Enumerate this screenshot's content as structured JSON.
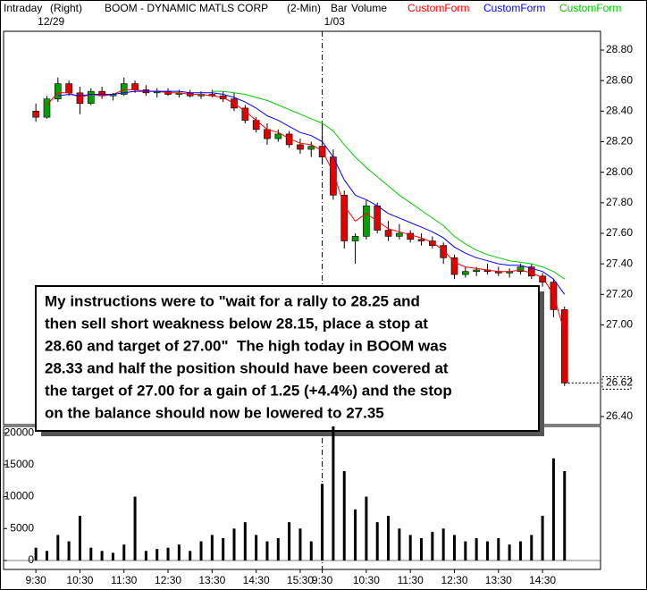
{
  "header": {
    "mode": "Intraday",
    "axis_side": "(Right)",
    "symbol": "BOOM - DYNAMIC MATLS CORP",
    "interval": "(2-Min)",
    "style": "Bar",
    "study": "Volume"
  },
  "chart_data": [
    {
      "type": "candlestick",
      "dates": [
        {
          "value": 0,
          "label": "12/29"
        },
        {
          "value": 390,
          "label": "1/03"
        }
      ],
      "x": [
        0,
        15,
        30,
        45,
        60,
        75,
        90,
        105,
        120,
        135,
        150,
        165,
        180,
        195,
        210,
        225,
        240,
        255,
        270,
        285,
        300,
        315,
        330,
        345,
        360,
        375,
        390,
        405,
        420,
        435,
        450,
        465,
        480,
        495,
        510,
        525,
        540,
        555,
        570,
        585,
        600,
        615,
        630,
        645,
        660,
        675,
        690,
        705,
        720
      ],
      "open": [
        28.4,
        28.36,
        28.48,
        28.58,
        28.52,
        28.45,
        28.53,
        28.5,
        28.51,
        28.58,
        28.54,
        28.52,
        28.53,
        28.51,
        28.52,
        28.5,
        28.51,
        28.5,
        28.48,
        28.42,
        28.34,
        28.28,
        28.22,
        28.25,
        28.18,
        28.15,
        28.17,
        28.1,
        27.85,
        27.55,
        27.58,
        27.78,
        27.62,
        27.58,
        27.6,
        27.56,
        27.55,
        27.52,
        27.44,
        27.33,
        27.35,
        27.36,
        27.35,
        27.34,
        27.35,
        27.38,
        27.32,
        27.28,
        27.1
      ],
      "high": [
        28.45,
        28.5,
        28.62,
        28.6,
        28.56,
        28.55,
        28.56,
        28.52,
        28.62,
        28.6,
        28.57,
        28.55,
        28.55,
        28.54,
        28.54,
        28.53,
        28.54,
        28.53,
        28.52,
        28.44,
        28.36,
        28.32,
        28.28,
        28.27,
        28.22,
        28.2,
        28.33,
        28.15,
        27.88,
        27.6,
        27.82,
        27.8,
        27.68,
        27.66,
        27.62,
        27.6,
        27.58,
        27.54,
        27.46,
        27.38,
        27.38,
        27.4,
        27.38,
        27.37,
        27.4,
        27.4,
        27.34,
        27.3,
        27.12
      ],
      "low": [
        28.33,
        28.35,
        28.46,
        28.5,
        28.38,
        28.44,
        28.48,
        28.47,
        28.5,
        28.52,
        28.5,
        28.49,
        28.5,
        28.49,
        28.49,
        28.48,
        28.49,
        28.46,
        28.4,
        28.32,
        28.26,
        28.18,
        28.2,
        28.16,
        28.12,
        28.1,
        28.05,
        27.82,
        27.5,
        27.4,
        27.56,
        27.6,
        27.55,
        27.56,
        27.54,
        27.52,
        27.5,
        27.4,
        27.3,
        27.31,
        27.32,
        27.33,
        27.32,
        27.31,
        27.33,
        27.3,
        27.25,
        27.05,
        26.6
      ],
      "close": [
        28.36,
        28.48,
        28.58,
        28.52,
        28.45,
        28.53,
        28.5,
        28.51,
        28.58,
        28.54,
        28.52,
        28.53,
        28.51,
        28.52,
        28.5,
        28.51,
        28.5,
        28.48,
        28.42,
        28.34,
        28.28,
        28.22,
        28.25,
        28.18,
        28.15,
        28.17,
        28.1,
        27.85,
        27.55,
        27.58,
        27.78,
        27.62,
        27.58,
        27.6,
        27.56,
        27.55,
        27.52,
        27.44,
        27.33,
        27.35,
        27.36,
        27.35,
        27.34,
        27.35,
        27.38,
        27.32,
        27.28,
        27.1,
        26.62
      ],
      "up_color": "#00a000",
      "down_color": "#e00000",
      "series": [
        {
          "name": "CustomForm",
          "color": "#ff0000",
          "values": [
            null,
            28.44,
            28.52,
            28.52,
            28.49,
            28.51,
            28.5,
            28.51,
            28.54,
            28.54,
            28.53,
            28.53,
            28.52,
            28.52,
            28.51,
            28.51,
            28.5,
            28.49,
            28.45,
            28.4,
            28.34,
            28.28,
            28.26,
            28.22,
            28.19,
            28.18,
            28.14,
            28.0,
            27.78,
            27.68,
            27.73,
            27.68,
            27.63,
            27.61,
            27.59,
            27.57,
            27.54,
            27.49,
            27.41,
            27.38,
            27.37,
            27.36,
            27.35,
            27.35,
            27.36,
            27.34,
            27.31,
            27.2,
            26.95
          ]
        },
        {
          "name": "CustomForm",
          "color": "#0000ff",
          "values": [
            null,
            null,
            28.5,
            28.51,
            28.5,
            28.51,
            28.51,
            28.51,
            28.52,
            28.53,
            28.53,
            28.53,
            28.53,
            28.53,
            28.52,
            28.52,
            28.52,
            28.51,
            28.49,
            28.46,
            28.42,
            28.37,
            28.34,
            28.3,
            28.26,
            28.24,
            28.2,
            28.1,
            27.95,
            27.85,
            27.82,
            27.78,
            27.73,
            27.7,
            27.67,
            27.64,
            27.61,
            27.57,
            27.51,
            27.47,
            27.44,
            27.42,
            27.4,
            27.39,
            27.39,
            27.37,
            27.35,
            27.3,
            27.2
          ]
        },
        {
          "name": "CustomForm",
          "color": "#00cc00",
          "values": [
            null,
            null,
            null,
            null,
            null,
            null,
            null,
            null,
            null,
            null,
            null,
            null,
            null,
            null,
            null,
            null,
            28.53,
            28.53,
            28.52,
            28.51,
            28.49,
            28.47,
            28.44,
            28.41,
            28.38,
            28.35,
            28.32,
            28.27,
            28.18,
            28.1,
            28.03,
            27.97,
            27.91,
            27.85,
            27.8,
            27.75,
            27.7,
            27.65,
            27.58,
            27.53,
            27.49,
            27.46,
            27.44,
            27.42,
            27.41,
            27.4,
            27.38,
            27.35,
            27.3
          ]
        }
      ],
      "xlim": [
        -44,
        769
      ],
      "ylim": [
        26.347,
        28.923
      ],
      "yticks": [
        {
          "value": 28.8,
          "label": "28.80"
        },
        {
          "value": 28.6,
          "label": "28.60"
        },
        {
          "value": 28.4,
          "label": "28.40"
        },
        {
          "value": 28.2,
          "label": "28.20"
        },
        {
          "value": 28.0,
          "label": "28.00"
        },
        {
          "value": 27.8,
          "label": "27.80"
        },
        {
          "value": 27.6,
          "label": "27.60"
        },
        {
          "value": 27.4,
          "label": "27.40"
        },
        {
          "value": 27.2,
          "label": "27.20"
        },
        {
          "value": 27.0,
          "label": "27.00"
        },
        {
          "value": 26.4,
          "label": "26.40"
        }
      ],
      "last_price": {
        "value": 26.62,
        "label": "26.62"
      },
      "annotation": [
        "My instructions were to \"wait for a rally to 28.25 and",
        "then sell short weakness below 28.15, place a stop at",
        "28.60 and target of 27.00\"  The high today in BOOM was",
        "28.33 and half the position should have been covered at",
        "the target of 27.00 for a gain of 1.25 (+4.4%) and the stop",
        "on the balance should now be lowered to 27.35"
      ]
    },
    {
      "type": "bar",
      "x": [
        0,
        15,
        30,
        45,
        60,
        75,
        90,
        105,
        120,
        135,
        150,
        165,
        180,
        195,
        210,
        225,
        240,
        255,
        270,
        285,
        300,
        315,
        330,
        345,
        360,
        375,
        390,
        405,
        420,
        435,
        450,
        465,
        480,
        495,
        510,
        525,
        540,
        555,
        570,
        585,
        600,
        615,
        630,
        645,
        660,
        675,
        690,
        705,
        720
      ],
      "values": [
        2000,
        1500,
        4000,
        3000,
        7000,
        2000,
        1500,
        1200,
        2500,
        10000,
        1500,
        1800,
        2000,
        2500,
        1500,
        3000,
        4000,
        3500,
        5000,
        6000,
        4000,
        3000,
        3500,
        6000,
        5000,
        3000,
        12000,
        21000,
        14000,
        8000,
        10000,
        6000,
        7000,
        5000,
        4000,
        3500,
        4500,
        5000,
        4000,
        3000,
        3500,
        3000,
        3500,
        2500,
        3000,
        4000,
        7000,
        16000,
        14000
      ],
      "color": "#000000",
      "xlim": [
        -44,
        769
      ],
      "ylim": [
        -1400,
        21000
      ],
      "yticks": [
        0,
        5000,
        10000,
        15000,
        20000
      ],
      "xticks": [
        {
          "value": 0,
          "label": "9:30"
        },
        {
          "value": 60,
          "label": "10:30"
        },
        {
          "value": 120,
          "label": "11:30"
        },
        {
          "value": 180,
          "label": "12:30"
        },
        {
          "value": 240,
          "label": "13:30"
        },
        {
          "value": 300,
          "label": "14:30"
        },
        {
          "value": 360,
          "label": "15:30"
        },
        {
          "value": 390,
          "label": "9:30"
        },
        {
          "value": 450,
          "label": "10:30"
        },
        {
          "value": 510,
          "label": "11:30"
        },
        {
          "value": 570,
          "label": "12:30"
        },
        {
          "value": 630,
          "label": "13:30"
        },
        {
          "value": 690,
          "label": "14:30"
        }
      ]
    }
  ]
}
